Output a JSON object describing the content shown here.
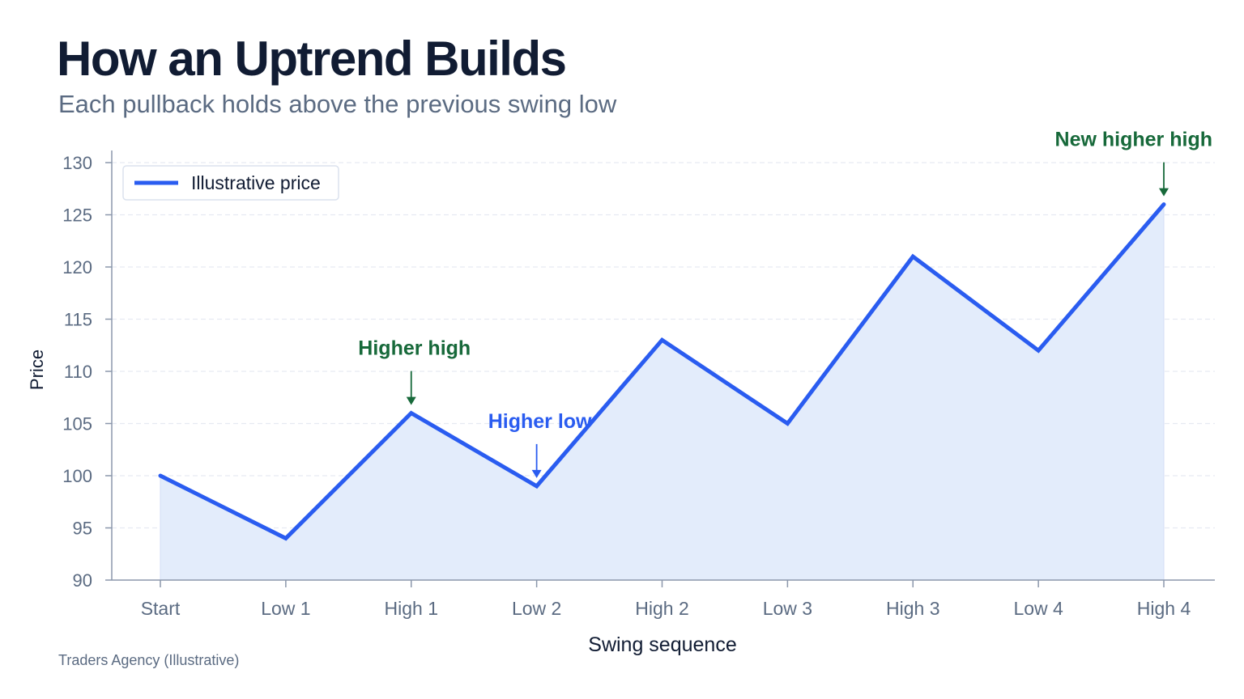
{
  "header": {
    "title": "How an Uptrend Builds",
    "subtitle": "Each pullback holds above the previous swing low"
  },
  "footer": {
    "source": "Traders Agency (Illustrative)"
  },
  "colors": {
    "line": "#2a5cf0",
    "area": "#e3ecfb",
    "higher_high": "#17693a",
    "higher_low": "#2a5cf0",
    "axis_text": "#5b6b82",
    "label_dark": "#111c33",
    "grid": "#e6eaf2"
  },
  "chart_data": {
    "type": "area",
    "xlabel": "Swing sequence",
    "ylabel": "Price",
    "ylim": [
      90,
      130
    ],
    "yticks": [
      90,
      95,
      100,
      105,
      110,
      115,
      120,
      125,
      130
    ],
    "grid": true,
    "legend": {
      "position": "top-left",
      "entries": [
        "Illustrative price"
      ]
    },
    "categories": [
      "Start",
      "Low 1",
      "High 1",
      "Low 2",
      "High 2",
      "Low 3",
      "High 3",
      "Low 4",
      "High 4"
    ],
    "series": [
      {
        "name": "Illustrative price",
        "values": [
          100,
          94,
          106,
          99,
          113,
          105,
          121,
          112,
          126
        ]
      }
    ],
    "annotations": [
      {
        "text": "Higher high",
        "category": "High 1",
        "value": 106,
        "kind": "higher_high"
      },
      {
        "text": "Higher low",
        "category": "Low 2",
        "value": 99,
        "kind": "higher_low"
      },
      {
        "text": "New higher high",
        "category": "High 4",
        "value": 126,
        "kind": "higher_high"
      }
    ]
  }
}
